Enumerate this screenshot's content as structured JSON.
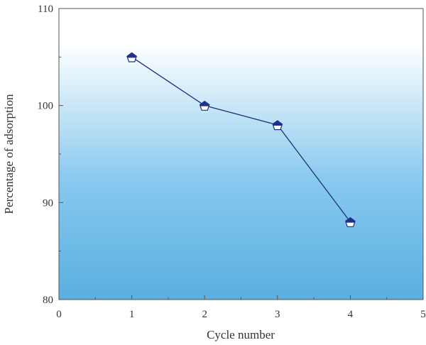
{
  "chart_data": {
    "type": "line",
    "xlabel": "Cycle number",
    "ylabel": "Percentage of adsorption",
    "xlim": [
      0,
      5
    ],
    "ylim": [
      80,
      110
    ],
    "x_ticks": [
      "0",
      "1",
      "2",
      "3",
      "4",
      "5"
    ],
    "y_ticks": [
      "80",
      "90",
      "100",
      "110"
    ],
    "grid": false,
    "background": "vertical gradient, white at top to blue at bottom",
    "series": [
      {
        "x": [
          1,
          2,
          3,
          4
        ],
        "values": [
          105,
          100,
          98,
          88
        ],
        "marker": "pentagon",
        "color": "#1f2f7f",
        "marker_fill_top": "#1f3090",
        "marker_fill_bottom": "#ffffff"
      }
    ],
    "colors": {
      "gradient_top": "#ffffff",
      "gradient_bottom": "#5aafe0",
      "axis": "#555555",
      "line": "#1f2f7f"
    }
  }
}
